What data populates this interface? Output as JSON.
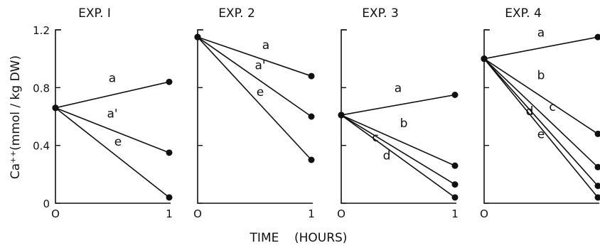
{
  "chart_data": {
    "type": "line",
    "ylabel": "Ca⁺⁺(mmol / kg DW)",
    "xlabel": "TIME    (HOURS)",
    "ylim": [
      0,
      1.2
    ],
    "xlim": [
      0,
      1
    ],
    "y_ticks": [
      "0",
      "0.4",
      "0.8",
      "1.2"
    ],
    "x_tick_labels": [
      "O",
      "1"
    ],
    "panels": [
      {
        "title": "EXP. I",
        "x": [
          0,
          1
        ],
        "series": [
          {
            "name": "a",
            "values": [
              0.66,
              0.84
            ]
          },
          {
            "name": "a'",
            "values": [
              0.66,
              0.35
            ]
          },
          {
            "name": "e",
            "values": [
              0.66,
              0.04
            ]
          }
        ]
      },
      {
        "title": "EXP. 2",
        "x": [
          0,
          1
        ],
        "series": [
          {
            "name": "a",
            "values": [
              1.15,
              0.88
            ]
          },
          {
            "name": "a'",
            "values": [
              1.15,
              0.6
            ]
          },
          {
            "name": "e",
            "values": [
              1.15,
              0.3
            ]
          }
        ]
      },
      {
        "title": "EXP. 3",
        "x": [
          0,
          1
        ],
        "series": [
          {
            "name": "a",
            "values": [
              0.61,
              0.75
            ]
          },
          {
            "name": "b",
            "values": [
              0.61,
              0.26
            ]
          },
          {
            "name": "c",
            "values": [
              0.61,
              0.13
            ]
          },
          {
            "name": "d",
            "values": [
              0.61,
              0.04
            ]
          }
        ]
      },
      {
        "title": "EXP. 4",
        "x": [
          0,
          1
        ],
        "series": [
          {
            "name": "a",
            "values": [
              1.0,
              1.15
            ]
          },
          {
            "name": "b",
            "values": [
              1.0,
              0.48
            ]
          },
          {
            "name": "c",
            "values": [
              1.0,
              0.25
            ]
          },
          {
            "name": "d",
            "values": [
              1.0,
              0.12
            ]
          },
          {
            "name": "e",
            "values": [
              1.0,
              0.04
            ]
          }
        ]
      }
    ]
  }
}
